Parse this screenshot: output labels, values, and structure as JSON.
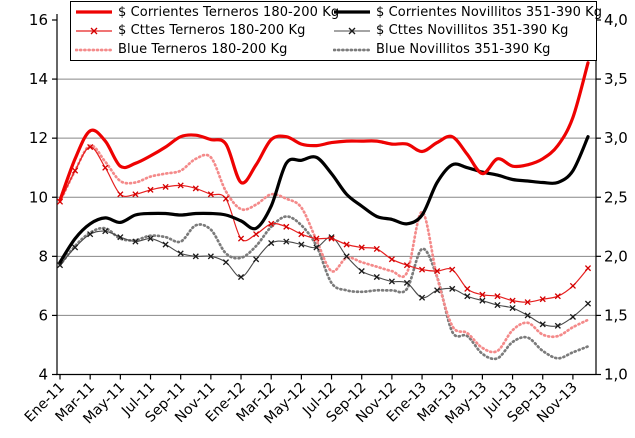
{
  "chart_data": {
    "type": "line",
    "title": "",
    "left_axis": {
      "min": 4,
      "max": 16,
      "ticks": [
        16,
        14,
        12,
        10,
        8,
        6,
        4
      ]
    },
    "right_axis": {
      "labels_top_to_bottom": [
        "4,0",
        "3,5",
        "3,0",
        "2,5",
        "2,0",
        "1,5",
        "1,0"
      ]
    },
    "gridlines_at": [
      6,
      8,
      10,
      12,
      14
    ],
    "grid_color": "#878787",
    "axis_color": "#000000",
    "legend_position": "top",
    "x_tick_labels": [
      "Ene-11",
      "Mar-11",
      "May-11",
      "Jul-11",
      "Sep-11",
      "Nov-11",
      "Ene-12",
      "Mar-12",
      "May-12",
      "Jul-12",
      "Sep-12",
      "Nov-12",
      "Ene-13",
      "Mar-13",
      "May-13",
      "Jul-13",
      "Sep-13",
      "Nov-13"
    ],
    "months": [
      "Ene-11",
      "Feb-11",
      "Mar-11",
      "Abr-11",
      "May-11",
      "Jun-11",
      "Jul-11",
      "Ago-11",
      "Sep-11",
      "Oct-11",
      "Nov-11",
      "Dic-11",
      "Ene-12",
      "Feb-12",
      "Mar-12",
      "Abr-12",
      "May-12",
      "Jun-12",
      "Jul-12",
      "Ago-12",
      "Sep-12",
      "Oct-12",
      "Nov-12",
      "Dic-12",
      "Ene-13",
      "Feb-13",
      "Mar-13",
      "Abr-13",
      "May-13",
      "Jun-13",
      "Jul-13",
      "Ago-13",
      "Sep-13",
      "Oct-13",
      "Nov-13",
      "Dic-13"
    ],
    "series": [
      {
        "name": "Blue Novillitos 351-390 Kg",
        "color": "#7b7b7b",
        "width": 2.7,
        "style": "dotted",
        "marker": "none",
        "values": [
          7.7,
          8.35,
          8.8,
          8.95,
          8.6,
          8.55,
          8.7,
          8.65,
          8.5,
          9.05,
          8.9,
          8.1,
          7.95,
          8.35,
          9.0,
          9.35,
          9.05,
          8.35,
          7.1,
          6.85,
          6.8,
          6.85,
          6.85,
          6.9,
          8.25,
          7.3,
          5.45,
          5.3,
          4.7,
          4.55,
          5.1,
          5.25,
          4.8,
          4.55,
          4.75,
          4.95
        ]
      },
      {
        "name": "Blue Terneros 180-200 Kg",
        "color": "#f48a8a",
        "width": 2.7,
        "style": "dotted",
        "marker": "none",
        "values": [
          9.85,
          10.9,
          11.75,
          11.2,
          10.55,
          10.5,
          10.7,
          10.8,
          10.9,
          11.3,
          11.35,
          10.2,
          9.6,
          9.75,
          10.1,
          9.95,
          9.65,
          8.55,
          7.5,
          7.95,
          7.8,
          7.65,
          7.5,
          7.45,
          9.5,
          7.3,
          5.65,
          5.4,
          4.9,
          4.8,
          5.5,
          5.75,
          5.35,
          5.3,
          5.6,
          5.85
        ]
      },
      {
        "name": "$ Cttes Novillitos 351-390 Kg",
        "color": "#4a4a4a",
        "width": 1.1,
        "style": "solid",
        "marker": "x",
        "marker_color": "#1a1a1a",
        "values": [
          7.7,
          8.3,
          8.75,
          8.85,
          8.65,
          8.5,
          8.6,
          8.4,
          8.1,
          8.0,
          8.0,
          7.8,
          7.3,
          7.9,
          8.45,
          8.5,
          8.4,
          8.3,
          8.65,
          8.0,
          7.5,
          7.3,
          7.15,
          7.1,
          6.6,
          6.85,
          6.9,
          6.65,
          6.5,
          6.35,
          6.25,
          6.0,
          5.7,
          5.65,
          5.95,
          6.4
        ]
      },
      {
        "name": "$ Cttes Terneros 180-200 Kg",
        "color": "#e62020",
        "width": 1.2,
        "style": "solid",
        "marker": "x",
        "marker_color": "#d40000",
        "values": [
          9.85,
          10.9,
          11.7,
          11.0,
          10.1,
          10.1,
          10.25,
          10.35,
          10.4,
          10.3,
          10.1,
          9.95,
          8.6,
          8.75,
          9.1,
          9.0,
          8.75,
          8.6,
          8.6,
          8.4,
          8.3,
          8.25,
          7.9,
          7.7,
          7.55,
          7.5,
          7.55,
          6.9,
          6.7,
          6.65,
          6.5,
          6.45,
          6.55,
          6.65,
          7.0,
          7.6
        ]
      },
      {
        "name": "$ Corrientes Novillitos 351-390 Kg",
        "color": "#000000",
        "width": 3.2,
        "style": "solid",
        "marker": "none",
        "values": [
          7.8,
          8.6,
          9.1,
          9.3,
          9.15,
          9.4,
          9.45,
          9.45,
          9.4,
          9.45,
          9.45,
          9.4,
          9.2,
          8.95,
          9.7,
          11.15,
          11.25,
          11.35,
          10.8,
          10.1,
          9.7,
          9.35,
          9.25,
          9.1,
          9.4,
          10.5,
          11.1,
          11.0,
          10.85,
          10.75,
          10.6,
          10.55,
          10.5,
          10.5,
          10.9,
          12.05
        ]
      },
      {
        "name": "$ Corrientes Terneros 180-200 Kg",
        "color": "#ee0202",
        "width": 3.2,
        "style": "solid",
        "marker": "none",
        "values": [
          9.9,
          11.3,
          12.25,
          11.9,
          11.05,
          11.15,
          11.4,
          11.7,
          12.05,
          12.1,
          11.95,
          11.8,
          10.5,
          11.1,
          11.95,
          12.05,
          11.8,
          11.75,
          11.85,
          11.9,
          11.9,
          11.9,
          11.8,
          11.8,
          11.55,
          11.85,
          12.05,
          11.45,
          10.8,
          11.3,
          11.05,
          11.1,
          11.3,
          11.75,
          12.7,
          14.55
        ]
      }
    ]
  },
  "legend": {
    "items": [
      {
        "label": "$ Corrientes Terneros 180-200 Kg",
        "series_index": 5
      },
      {
        "label": "$ Cttes Terneros 180-200 Kg",
        "series_index": 3
      },
      {
        "label": "Blue Terneros 180-200 Kg",
        "series_index": 1
      },
      {
        "label": "$ Corrientes Novillitos 351-390 Kg",
        "series_index": 4
      },
      {
        "label": "$ Cttes Novillitos 351-390 Kg",
        "series_index": 2
      },
      {
        "label": "Blue Novillitos 351-390 Kg",
        "series_index": 0
      }
    ]
  }
}
